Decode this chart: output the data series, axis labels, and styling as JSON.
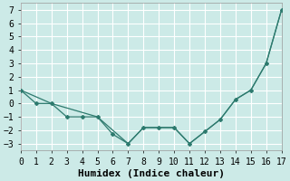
{
  "xlabel": "Humidex (Indice chaleur)",
  "background_color": "#cceae7",
  "grid_color": "#ffffff",
  "line_color": "#2d7a6e",
  "x_zigzag": [
    0,
    1,
    2,
    3,
    4,
    5,
    6,
    7,
    8,
    9,
    10,
    11,
    12,
    13,
    14,
    15,
    16,
    17
  ],
  "y_zigzag": [
    1,
    0,
    0,
    -1,
    -1,
    -1,
    -2.3,
    -3,
    -1.8,
    -1.8,
    -1.8,
    -3,
    -2.1,
    -1.2,
    0.3,
    1.0,
    3.0,
    7.0
  ],
  "x_envelope": [
    0,
    2,
    5,
    7,
    8,
    9,
    10,
    11,
    12,
    13,
    14,
    15,
    16,
    17
  ],
  "y_envelope": [
    1,
    0,
    -1,
    -3,
    -1.8,
    -1.8,
    -1.8,
    -3,
    -2.1,
    -1.2,
    0.3,
    1.0,
    3.0,
    7.0
  ],
  "xlim": [
    0,
    17
  ],
  "ylim": [
    -3.5,
    7.5
  ],
  "xticks": [
    0,
    1,
    2,
    3,
    4,
    5,
    6,
    7,
    8,
    9,
    10,
    11,
    12,
    13,
    14,
    15,
    16,
    17
  ],
  "yticks": [
    -3,
    -2,
    -1,
    0,
    1,
    2,
    3,
    4,
    5,
    6,
    7
  ],
  "xlabel_fontsize": 8,
  "tick_fontsize": 7
}
